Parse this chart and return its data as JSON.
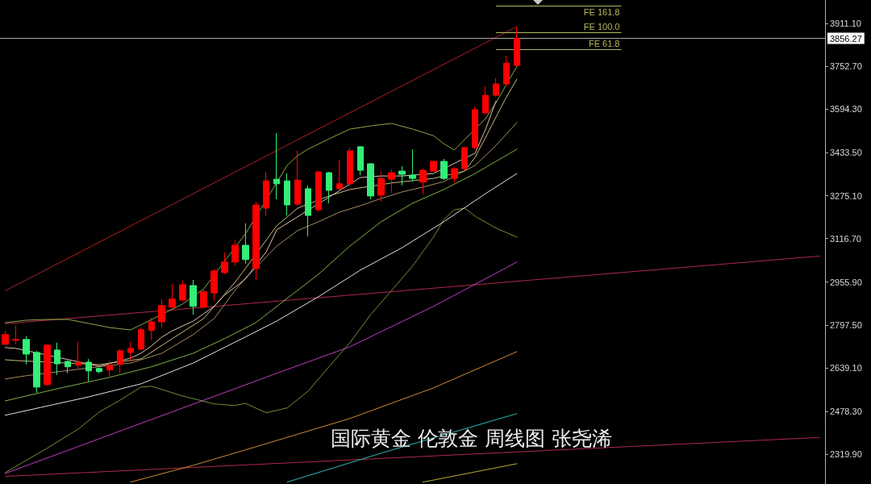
{
  "chart_data": {
    "type": "candlestick",
    "title": "国际黄金 伦敦金 周线图 张尧浠",
    "categories": [
      null,
      null,
      null,
      null,
      null,
      null,
      null,
      null,
      null,
      null,
      null,
      null,
      null,
      null,
      null,
      null,
      null,
      null,
      null,
      null,
      null,
      null,
      null,
      null,
      null,
      null,
      null,
      null,
      null,
      null,
      null,
      null,
      null,
      null,
      null,
      null,
      null,
      null,
      null,
      null,
      null,
      null,
      null,
      null,
      null,
      null,
      null,
      null,
      null,
      null,
      null,
      null,
      null,
      null,
      null,
      null,
      null,
      null,
      null,
      null,
      null,
      null,
      null,
      null,
      null,
      null,
      null,
      null,
      null,
      null,
      null,
      null,
      null,
      null,
      null,
      null,
      null,
      null,
      null
    ],
    "ohlc": [
      [
        2726,
        2777,
        2723,
        2762
      ],
      [
        2741,
        2794,
        2726,
        2744
      ],
      [
        2744,
        2756,
        2652,
        2690
      ],
      [
        2696,
        2702,
        2547,
        2568
      ],
      [
        2577,
        2726,
        2574,
        2723
      ],
      [
        2705,
        2732,
        2613,
        2654
      ],
      [
        2663,
        2666,
        2619,
        2643
      ],
      [
        2649,
        2735,
        2637,
        2660
      ],
      [
        2660,
        2672,
        2589,
        2628
      ],
      [
        2637,
        2640,
        2619,
        2625
      ],
      [
        2631,
        2666,
        2607,
        2649
      ],
      [
        2652,
        2708,
        2619,
        2702
      ],
      [
        2696,
        2735,
        2663,
        2711
      ],
      [
        2708,
        2788,
        2705,
        2780
      ],
      [
        2777,
        2824,
        2741,
        2809
      ],
      [
        2809,
        2893,
        2786,
        2869
      ],
      [
        2863,
        2949,
        2860,
        2893
      ],
      [
        2890,
        2961,
        2884,
        2946
      ],
      [
        2943,
        2964,
        2836,
        2866
      ],
      [
        2863,
        2934,
        2860,
        2920
      ],
      [
        2916,
        3006,
        2887,
        2997
      ],
      [
        2991,
        3065,
        2985,
        3030
      ],
      [
        3030,
        3113,
        3015,
        3092
      ],
      [
        3092,
        3173,
        3024,
        3039
      ],
      [
        3006,
        3253,
        2964,
        3241
      ],
      [
        3229,
        3363,
        3199,
        3330
      ],
      [
        3336,
        3506,
        3262,
        3319
      ],
      [
        3330,
        3357,
        3202,
        3241
      ],
      [
        3244,
        3441,
        3238,
        3333
      ],
      [
        3301,
        3313,
        3125,
        3202
      ],
      [
        3223,
        3366,
        3217,
        3363
      ],
      [
        3360,
        3363,
        3247,
        3295
      ],
      [
        3301,
        3408,
        3298,
        3319
      ],
      [
        3319,
        3453,
        3313,
        3441
      ],
      [
        3456,
        3458,
        3351,
        3369
      ],
      [
        3393,
        3396,
        3262,
        3274
      ],
      [
        3277,
        3366,
        3253,
        3339
      ],
      [
        3336,
        3372,
        3286,
        3360
      ],
      [
        3366,
        3384,
        3313,
        3354
      ],
      [
        3351,
        3447,
        3328,
        3339
      ],
      [
        3325,
        3375,
        3280,
        3369
      ],
      [
        3366,
        3405,
        3363,
        3402
      ],
      [
        3402,
        3411,
        3333,
        3339
      ],
      [
        3339,
        3381,
        3322,
        3375
      ],
      [
        3375,
        3456,
        3369,
        3453
      ],
      [
        3453,
        3604,
        3447,
        3593
      ],
      [
        3581,
        3679,
        3575,
        3646
      ],
      [
        3646,
        3709,
        3640,
        3688
      ],
      [
        3688,
        3792,
        3682,
        3765
      ],
      [
        3756,
        3899,
        3755,
        3856.27
      ],
      null,
      null,
      null,
      null,
      null,
      null,
      null,
      null,
      null,
      null,
      null,
      null,
      null,
      null,
      null,
      null,
      null,
      null,
      null,
      null,
      null,
      null,
      null,
      null,
      null,
      null,
      null,
      null,
      null
    ],
    "colors": [
      "#ff0000",
      "#ff0000",
      "#33ee77",
      "#33ee77",
      "#ff0000",
      "#33ee77",
      "#33ee77",
      "#ff0000",
      "#33ee77",
      "#33ee77",
      "#ff0000",
      "#ff0000",
      "#ff0000",
      "#ff0000",
      "#ff0000",
      "#ff0000",
      "#ff0000",
      "#ff0000",
      "#33ee77",
      "#ff0000",
      "#ff0000",
      "#ff0000",
      "#ff0000",
      "#33ee77",
      "#ff0000",
      "#ff0000",
      "#33ee77",
      "#33ee77",
      "#ff0000",
      "#33ee77",
      "#ff0000",
      "#33ee77",
      "#ff0000",
      "#ff0000",
      "#33ee77",
      "#33ee77",
      "#ff0000",
      "#ff0000",
      "#33ee77",
      "#33ee77",
      "#ff0000",
      "#ff0000",
      "#33ee77",
      "#ff0000",
      "#ff0000",
      "#ff0000",
      "#ff0000",
      "#ff0000",
      "#ff0000",
      "#ff0000",
      null,
      null,
      null,
      null,
      null,
      null,
      null,
      null,
      null,
      null,
      null,
      null,
      null,
      null,
      null,
      null,
      null,
      null,
      null,
      null,
      null,
      null,
      null,
      null,
      null,
      null,
      null,
      null,
      null
    ],
    "series": [
      {
        "type": "line",
        "color": "#b02020",
        "values": [
          2924,
          null,
          null,
          null,
          null,
          null,
          null,
          null,
          null,
          null,
          null,
          null,
          null,
          null,
          null,
          null,
          null,
          null,
          null,
          null,
          null,
          null,
          null,
          null,
          null,
          null,
          null,
          null,
          null,
          null,
          null,
          null,
          null,
          null,
          null,
          null,
          null,
          null,
          null,
          null,
          null,
          null,
          null,
          null,
          null,
          null,
          null,
          null,
          null,
          3900,
          null,
          null,
          null,
          null,
          null,
          null,
          null,
          null,
          null,
          null,
          null,
          null,
          null,
          null,
          null,
          null,
          null,
          null,
          null,
          null,
          null,
          null,
          null,
          null,
          null,
          null,
          null,
          null,
          null
        ]
      },
      {
        "type": "line",
        "color": "#b0284a",
        "values": [
          2802,
          null,
          null,
          null,
          null,
          null,
          null,
          null,
          null,
          null,
          null,
          null,
          null,
          null,
          null,
          null,
          null,
          null,
          null,
          null,
          null,
          null,
          null,
          null,
          null,
          null,
          null,
          null,
          null,
          null,
          null,
          null,
          null,
          null,
          null,
          null,
          null,
          null,
          null,
          null,
          null,
          null,
          null,
          null,
          null,
          null,
          null,
          null,
          null,
          null,
          null,
          null,
          null,
          null,
          null,
          null,
          null,
          null,
          null,
          null,
          null,
          null,
          null,
          null,
          null,
          null,
          null,
          null,
          null,
          null,
          null,
          null,
          null,
          null,
          null,
          null,
          null,
          null,
          3052
        ]
      },
      {
        "type": "line",
        "color": "#b0284a",
        "values": [
          2238,
          null,
          null,
          null,
          null,
          null,
          null,
          null,
          null,
          null,
          null,
          null,
          null,
          null,
          null,
          null,
          null,
          null,
          null,
          null,
          null,
          null,
          null,
          null,
          null,
          null,
          null,
          null,
          null,
          null,
          null,
          null,
          null,
          null,
          null,
          null,
          null,
          null,
          null,
          null,
          null,
          null,
          null,
          null,
          null,
          null,
          null,
          null,
          null,
          null,
          null,
          null,
          null,
          null,
          null,
          null,
          null,
          null,
          null,
          null,
          null,
          null,
          null,
          null,
          null,
          null,
          null,
          null,
          null,
          null,
          null,
          null,
          null,
          null,
          null,
          null,
          null,
          null,
          2382
        ]
      },
      {
        "type": "line",
        "color": "#b8b030",
        "values": [
          null,
          null,
          null,
          null,
          null,
          null,
          null,
          null,
          null,
          null,
          null,
          null,
          null,
          null,
          null,
          null,
          null,
          null,
          null,
          null,
          null,
          null,
          null,
          null,
          null,
          null,
          null,
          null,
          null,
          null,
          null,
          null,
          null,
          null,
          null,
          null,
          null,
          null,
          null,
          null,
          2217,
          null,
          null,
          null,
          null,
          null,
          null,
          null,
          null,
          2285,
          null,
          null,
          null,
          null,
          null,
          null,
          null,
          null,
          null,
          null,
          null,
          null,
          null,
          null,
          null,
          null,
          null,
          null,
          null,
          null,
          null,
          null,
          null,
          null,
          null,
          null,
          null,
          null,
          null
        ]
      },
      {
        "type": "line",
        "color": "#30b8b8",
        "values": [
          null,
          null,
          null,
          null,
          null,
          null,
          null,
          null,
          null,
          null,
          null,
          null,
          null,
          null,
          null,
          null,
          null,
          null,
          null,
          null,
          null,
          null,
          null,
          null,
          null,
          null,
          null,
          2217,
          null,
          null,
          null,
          null,
          null,
          null,
          null,
          null,
          2324,
          null,
          null,
          null,
          null,
          null,
          null,
          null,
          null,
          null,
          null,
          null,
          null,
          2470,
          null,
          null,
          null,
          null,
          null,
          null,
          null,
          null,
          null,
          null,
          null,
          null,
          null,
          null,
          null,
          null,
          null,
          null,
          null,
          null,
          null,
          null,
          null,
          null,
          null,
          null,
          null,
          null,
          null
        ]
      },
      {
        "type": "line",
        "color": "#d08a3a",
        "values": [
          null,
          null,
          null,
          null,
          null,
          null,
          null,
          null,
          null,
          null,
          null,
          null,
          2217,
          null,
          null,
          null,
          null,
          null,
          2279,
          null,
          null,
          null,
          null,
          2336,
          null,
          null,
          null,
          null,
          null,
          null,
          null,
          null,
          null,
          2452,
          null,
          null,
          null,
          null,
          null,
          null,
          null,
          2565,
          null,
          null,
          null,
          null,
          null,
          null,
          null,
          2699,
          null,
          null,
          null,
          null,
          null,
          null,
          null,
          null,
          null,
          null,
          null,
          null,
          null,
          null,
          null,
          null,
          null,
          null,
          null,
          null,
          null,
          null,
          null,
          null,
          null,
          null,
          null,
          null,
          null
        ]
      },
      {
        "type": "line",
        "color": "#c03cc0",
        "values": [
          2249,
          null,
          null,
          null,
          null,
          null,
          null,
          null,
          null,
          null,
          null,
          null,
          null,
          2434,
          null,
          null,
          null,
          null,
          null,
          null,
          null,
          null,
          null,
          null,
          null,
          null,
          2619,
          null,
          null,
          null,
          null,
          null,
          null,
          2717,
          null,
          null,
          null,
          null,
          null,
          null,
          null,
          2866,
          null,
          null,
          null,
          null,
          null,
          null,
          null,
          3030,
          null,
          null,
          null,
          null,
          null,
          null,
          null,
          null,
          null,
          null,
          null,
          null,
          null,
          null,
          null,
          null,
          null,
          null,
          null,
          null,
          null,
          null,
          null,
          null,
          null,
          null,
          null,
          null,
          null
        ]
      },
      {
        "type": "line",
        "color": "#6f8f36",
        "values": [
          2252,
          null,
          null,
          null,
          2342,
          null,
          null,
          2413,
          null,
          2476,
          null,
          2520,
          null,
          2568,
          2571,
          null,
          null,
          2535,
          null,
          null,
          2506,
          null,
          2500,
          2508,
          null,
          2473,
          null,
          2491,
          null,
          2553,
          null,
          2643,
          null,
          2732,
          null,
          2836,
          null,
          2925,
          null,
          3015,
          null,
          3122,
          3187,
          3223,
          3229,
          3199,
          null,
          3155,
          null,
          3122,
          null,
          null,
          null,
          null,
          null,
          null,
          null,
          null,
          null,
          null,
          null,
          null,
          null,
          null,
          null,
          null,
          null,
          null,
          null,
          null,
          null,
          null,
          null,
          null,
          null,
          null,
          null,
          null,
          null
        ]
      },
      {
        "type": "line",
        "color": "#e0e0e0",
        "values": [
          2464,
          null,
          null,
          null,
          null,
          null,
          null,
          null,
          2532,
          null,
          null,
          null,
          null,
          2580,
          null,
          null,
          null,
          null,
          2657,
          null,
          null,
          null,
          null,
          2753,
          null,
          null,
          2812,
          null,
          null,
          null,
          2902,
          null,
          null,
          null,
          3000,
          null,
          null,
          null,
          3083,
          null,
          null,
          null,
          3179,
          null,
          null,
          null,
          3283,
          null,
          null,
          3357,
          null,
          null,
          null,
          null,
          null,
          null,
          null,
          null,
          null,
          null,
          null,
          null,
          null,
          null,
          null,
          null,
          null,
          null,
          null,
          null,
          null,
          null,
          null,
          null,
          null,
          null,
          null,
          null,
          null
        ]
      },
      {
        "type": "line",
        "color": "#7fb24a",
        "values": [
          2517,
          null,
          null,
          null,
          null,
          2562,
          null,
          null,
          null,
          null,
          2604,
          null,
          null,
          null,
          2643,
          null,
          null,
          null,
          2693,
          null,
          null,
          2747,
          null,
          null,
          2806,
          null,
          null,
          2896,
          null,
          null,
          2985,
          null,
          null,
          3089,
          null,
          null,
          3179,
          null,
          null,
          3247,
          null,
          null,
          3298,
          null,
          null,
          3357,
          null,
          3402,
          null,
          3447,
          null,
          null,
          null,
          null,
          null,
          null,
          null,
          null,
          null,
          null,
          null,
          null,
          null,
          null,
          null,
          null,
          null,
          null,
          null,
          null,
          null,
          null,
          null,
          null,
          null,
          null,
          null,
          null,
          null
        ]
      },
      {
        "type": "line",
        "color": "#a88a62",
        "values": [
          2598,
          null,
          2610,
          null,
          null,
          null,
          null,
          2634,
          null,
          null,
          null,
          null,
          2657,
          null,
          null,
          2693,
          null,
          null,
          2762,
          null,
          2821,
          null,
          2925,
          2970,
          null,
          null,
          3089,
          null,
          3146,
          null,
          3179,
          null,
          3214,
          null,
          3238,
          null,
          3265,
          null,
          3289,
          null,
          3307,
          null,
          3327,
          null,
          null,
          3387,
          null,
          3461,
          null,
          3545,
          null,
          null,
          null,
          null,
          null,
          null,
          null,
          null,
          null,
          null,
          null,
          null,
          null,
          null,
          null,
          null,
          null,
          null,
          null,
          null,
          null,
          null,
          null,
          null,
          null,
          null,
          null,
          null,
          null
        ]
      },
      {
        "type": "line",
        "color": "#c8b87a",
        "values": [
          2669,
          2666,
          null,
          null,
          null,
          null,
          null,
          null,
          null,
          2651,
          null,
          null,
          null,
          2672,
          null,
          null,
          2747,
          null,
          null,
          2821,
          null,
          null,
          2955,
          3006,
          null,
          null,
          3164,
          null,
          3229,
          null,
          null,
          3274,
          null,
          3298,
          null,
          null,
          null,
          3322,
          null,
          null,
          null,
          3339,
          null,
          null,
          3366,
          3417,
          3491,
          3566,
          3640,
          3706,
          null,
          null,
          null,
          null,
          null,
          null,
          null,
          null,
          null,
          null,
          null,
          null,
          null,
          null,
          null,
          null,
          null,
          null,
          null,
          null,
          null,
          null,
          null,
          null,
          null,
          null,
          null,
          null,
          null
        ]
      },
      {
        "type": "line",
        "color": "#8aa848",
        "values": [
          2806,
          null,
          2815,
          null,
          2818,
          null,
          2818,
          null,
          2803,
          null,
          2788,
          null,
          2779,
          null,
          null,
          null,
          null,
          2875,
          null,
          2931,
          null,
          null,
          null,
          3134,
          null,
          null,
          null,
          3387,
          3423,
          3447,
          null,
          3485,
          null,
          3521,
          null,
          3533,
          null,
          3542,
          null,
          3521,
          null,
          3497,
          3467,
          3444,
          null,
          null,
          3560,
          3619,
          null,
          3753,
          null,
          null,
          null,
          null,
          null,
          null,
          null,
          null,
          null,
          null,
          null,
          null,
          null,
          null,
          null,
          null,
          null,
          null,
          null,
          null,
          null,
          null,
          null,
          null,
          null,
          null,
          null,
          null,
          null
        ]
      },
      {
        "type": "line",
        "color": "#e0c0b0",
        "values": [
          2714,
          2711,
          null,
          null,
          null,
          null,
          null,
          null,
          null,
          2645,
          null,
          null,
          2675,
          2693,
          2720,
          2753,
          2776,
          2794,
          2812,
          2839,
          2866,
          2908,
          2937,
          2967,
          null,
          3068,
          3149,
          null,
          null,
          null,
          null,
          null,
          null,
          null,
          3342,
          null,
          3348,
          null,
          3348,
          null,
          null,
          3357,
          null,
          null,
          null,
          3432,
          3521,
          3625,
          null,
          null,
          null,
          null,
          null,
          null,
          null,
          null,
          null,
          null,
          null,
          null,
          null,
          null,
          null,
          null,
          null,
          null,
          null,
          null,
          null,
          null,
          null,
          null,
          null,
          null,
          null,
          null,
          null,
          null,
          null
        ]
      }
    ],
    "ylim": [
      2210,
      3998
    ],
    "yticks": [
      {
        "value": 2319.9,
        "label": "2319.90"
      },
      {
        "value": 2478.3,
        "label": "2478.30"
      },
      {
        "value": 2639.1,
        "label": "2639.10"
      },
      {
        "value": 2797.5,
        "label": "2797.50"
      },
      {
        "value": 2955.9,
        "label": "2955.90"
      },
      {
        "value": 3116.7,
        "label": "3116.70"
      },
      {
        "value": 3275.1,
        "label": "3275.10"
      },
      {
        "value": 3433.5,
        "label": "3433.50"
      },
      {
        "value": 3594.3,
        "label": "3594.30"
      },
      {
        "value": 3752.7,
        "label": "3752.70"
      },
      {
        "value": 3911.1,
        "label": "3911.10"
      }
    ],
    "ref_lines": [
      {
        "axis": "y",
        "value": 3856.27,
        "label": "3856.27",
        "color": "#a8a8a8"
      },
      {
        "axis": "y",
        "value": 3976,
        "label": "FE 161.8",
        "color": "#b8b860"
      },
      {
        "axis": "y",
        "value": 3877,
        "label": "FE 100.0",
        "color": "#b8b860"
      },
      {
        "axis": "y",
        "value": 3816,
        "label": "FE 61.8",
        "color": "#b8b860"
      }
    ],
    "tick_labels": "y",
    "marker": "none"
  }
}
